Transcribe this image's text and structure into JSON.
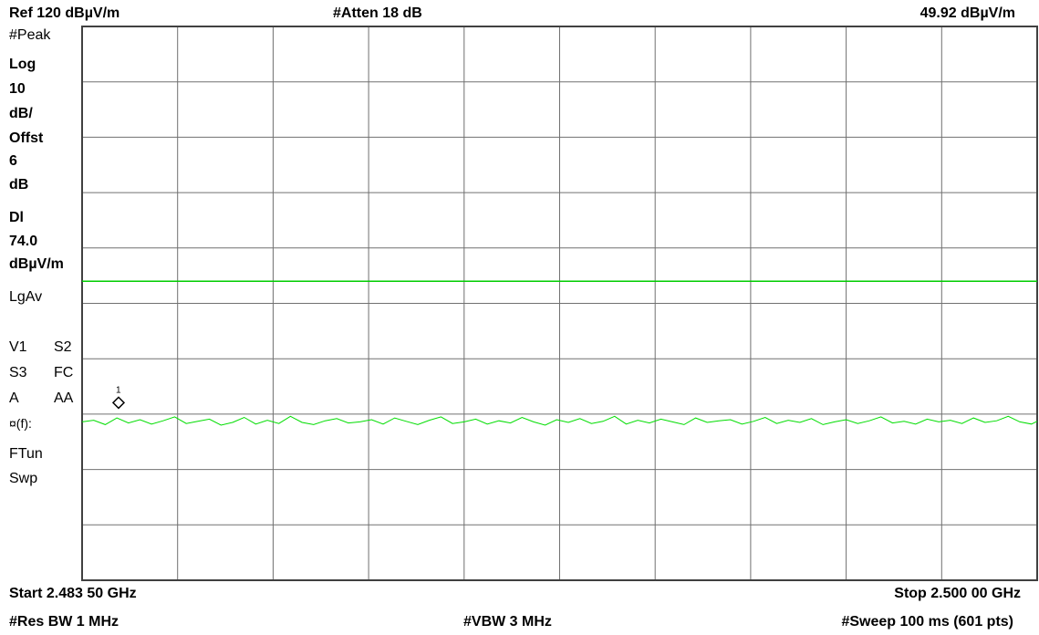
{
  "header": {
    "ref_level": "Ref 120 dBµV/m",
    "attenuation": "#Atten 18 dB",
    "marker_value": "49.92 dBµV/m"
  },
  "side_panel": {
    "detector": "#Peak",
    "scale_type": "Log",
    "scale_value": "10",
    "scale_unit": "dB/",
    "offset_label": "Offst",
    "offset_value": "6",
    "offset_unit": "dB",
    "display_line_label": "Dl",
    "display_line_value": "74.0",
    "display_line_unit": "dBµV/m",
    "avg_mode": "LgAv",
    "trace_row1_a": "V1",
    "trace_row1_b": "S2",
    "trace_row2_a": "S3",
    "trace_row2_b": "FC",
    "trace_row3_a": "A",
    "trace_row3_b": "AA",
    "ftun_symbol": "¤(f):",
    "ftun_label": "FTun",
    "sweep_label": "Swp"
  },
  "footer": {
    "start_freq": "Start 2.483 50 GHz",
    "stop_freq": "Stop 2.500 00 GHz",
    "rbw": "#Res BW 1 MHz",
    "vbw": "#VBW 3 MHz",
    "sweep": "#Sweep 100 ms (601 pts)"
  },
  "marker": {
    "label": "1",
    "freq_ghz": 2.48413,
    "value": 49.92
  },
  "colors": {
    "trace": "#00dd00",
    "display_line": "#00cc00",
    "grid": "#707070",
    "frame": "#404040"
  },
  "chart_data": {
    "type": "line",
    "title": "",
    "xlabel": "",
    "ylabel": "",
    "x_range_ghz": [
      2.4835,
      2.5
    ],
    "ylim": [
      20,
      120
    ],
    "y_scale": "Log 10 dB/div",
    "grid": true,
    "display_line": 74.0,
    "series": [
      {
        "x": [
          2.4835,
          2.4837,
          2.4839,
          2.4841,
          2.4843,
          2.4845,
          2.4847,
          2.4849,
          2.4851,
          2.4853,
          2.4855,
          2.4857,
          2.4859,
          2.4861,
          2.4863,
          2.4865,
          2.4867,
          2.4869,
          2.4871,
          2.4873,
          2.4875,
          2.4877,
          2.4879,
          2.4881,
          2.4883,
          2.4885,
          2.4887,
          2.4889,
          2.4891,
          2.4893,
          2.4895,
          2.4897,
          2.4899,
          2.4901,
          2.4903,
          2.4905,
          2.4907,
          2.4909,
          2.4911,
          2.4913,
          2.4915,
          2.4917,
          2.4919,
          2.4921,
          2.4923,
          2.4925,
          2.4927,
          2.4929,
          2.4931,
          2.4933,
          2.4935,
          2.4937,
          2.4939,
          2.4941,
          2.4943,
          2.4945,
          2.4947,
          2.4949,
          2.4951,
          2.4953,
          2.4955,
          2.4957,
          2.4959,
          2.4961,
          2.4963,
          2.4965,
          2.4967,
          2.4969,
          2.4971,
          2.4973,
          2.4975,
          2.4977,
          2.4979,
          2.4981,
          2.4983,
          2.4985,
          2.4987,
          2.4989,
          2.4991,
          2.4993,
          2.4995,
          2.4997,
          2.4999,
          2.5
        ],
        "y": [
          48.6,
          48.9,
          48.1,
          49.3,
          48.4,
          49.0,
          48.2,
          48.8,
          49.5,
          48.3,
          48.7,
          49.1,
          48.0,
          48.5,
          49.4,
          48.2,
          48.9,
          48.3,
          49.6,
          48.5,
          48.1,
          48.8,
          49.2,
          48.4,
          48.6,
          49.0,
          48.2,
          49.3,
          48.7,
          48.1,
          48.9,
          49.5,
          48.3,
          48.6,
          49.1,
          48.2,
          48.8,
          48.4,
          49.4,
          48.6,
          48.0,
          49.0,
          48.5,
          49.2,
          48.3,
          48.7,
          49.6,
          48.2,
          48.9,
          48.4,
          49.1,
          48.6,
          48.1,
          49.3,
          48.5,
          48.8,
          49.0,
          48.2,
          48.7,
          49.4,
          48.3,
          48.9,
          48.5,
          49.2,
          48.1,
          48.6,
          49.0,
          48.3,
          48.8,
          49.5,
          48.4,
          48.7,
          48.2,
          49.1,
          48.6,
          48.9,
          48.3,
          49.3,
          48.5,
          48.8,
          49.6,
          48.6,
          48.2,
          48.7
        ]
      }
    ]
  }
}
